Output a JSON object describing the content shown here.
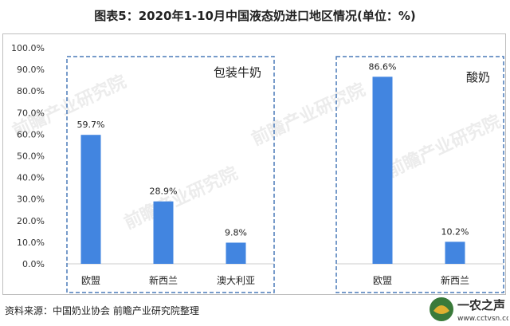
{
  "title": "图表5：2020年1-10月中国液态奶进口地区情况(单位：%)",
  "source": "资料来源：中国奶业协会 前瞻产业研究院整理",
  "watermark_text": "前瞻产业研究院",
  "corner_logo": {
    "line1": "一农之声",
    "line2": "www.cctvsn.com"
  },
  "colors": {
    "bar": "#4285e0",
    "box": "#4a7ab8",
    "grid": "#d9d9d9",
    "text": "#222222"
  },
  "chart_data": {
    "type": "bar",
    "title": "图表5：2020年1-10月中国液态奶进口地区情况(单位：%)",
    "xlabel": "",
    "ylabel": "",
    "ylim": [
      0,
      100
    ],
    "yticks": [
      "0.0%",
      "10.0%",
      "20.0%",
      "30.0%",
      "40.0%",
      "50.0%",
      "60.0%",
      "70.0%",
      "80.0%",
      "90.0%",
      "100.0%"
    ],
    "grid": false,
    "groups": [
      {
        "label": "包装牛奶",
        "categories": [
          "欧盟",
          "新西兰",
          "澳大利亚"
        ],
        "values": [
          59.7,
          28.9,
          9.8
        ],
        "data_labels": [
          "59.7%",
          "28.9%",
          "9.8%"
        ]
      },
      {
        "label": "酸奶",
        "categories": [
          "欧盟",
          "新西兰"
        ],
        "values": [
          86.6,
          10.2
        ],
        "data_labels": [
          "86.6%",
          "10.2%"
        ]
      }
    ]
  }
}
